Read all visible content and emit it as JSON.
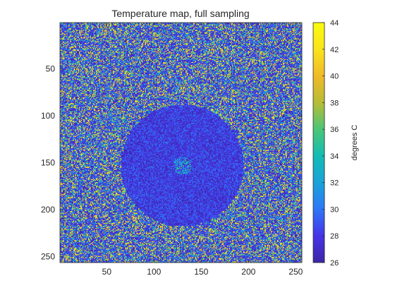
{
  "chart_data": {
    "type": "heatmap",
    "title": "Temperature map, full sampling",
    "xlabel": "",
    "ylabel": "",
    "x_range": [
      1,
      256
    ],
    "y_range": [
      1,
      256
    ],
    "y_reversed": true,
    "x_ticks": [
      50,
      100,
      150,
      200,
      250
    ],
    "y_ticks": [
      50,
      100,
      150,
      200,
      250
    ],
    "colorbar": {
      "label": "degrees C",
      "range": [
        26,
        44
      ],
      "ticks": [
        26,
        28,
        30,
        32,
        34,
        36,
        38,
        40,
        42,
        44
      ],
      "colormap": [
        "#3e26a8",
        "#4734e8",
        "#2e78f8",
        "#1aa3d8",
        "#13bcb5",
        "#4bc677",
        "#b7bd36",
        "#f0ba2a",
        "#fae31d",
        "#f9fb0e"
      ]
    },
    "regions": [
      {
        "name": "background",
        "distribution": "random noise",
        "value_range": [
          26,
          44
        ]
      },
      {
        "name": "disc",
        "center": [
          130,
          153
        ],
        "radius": 65,
        "value_range": [
          26,
          30
        ]
      },
      {
        "name": "hot spot",
        "center": [
          130,
          153
        ],
        "radius": 10,
        "value_range": [
          28,
          36
        ]
      }
    ],
    "grid": false
  }
}
